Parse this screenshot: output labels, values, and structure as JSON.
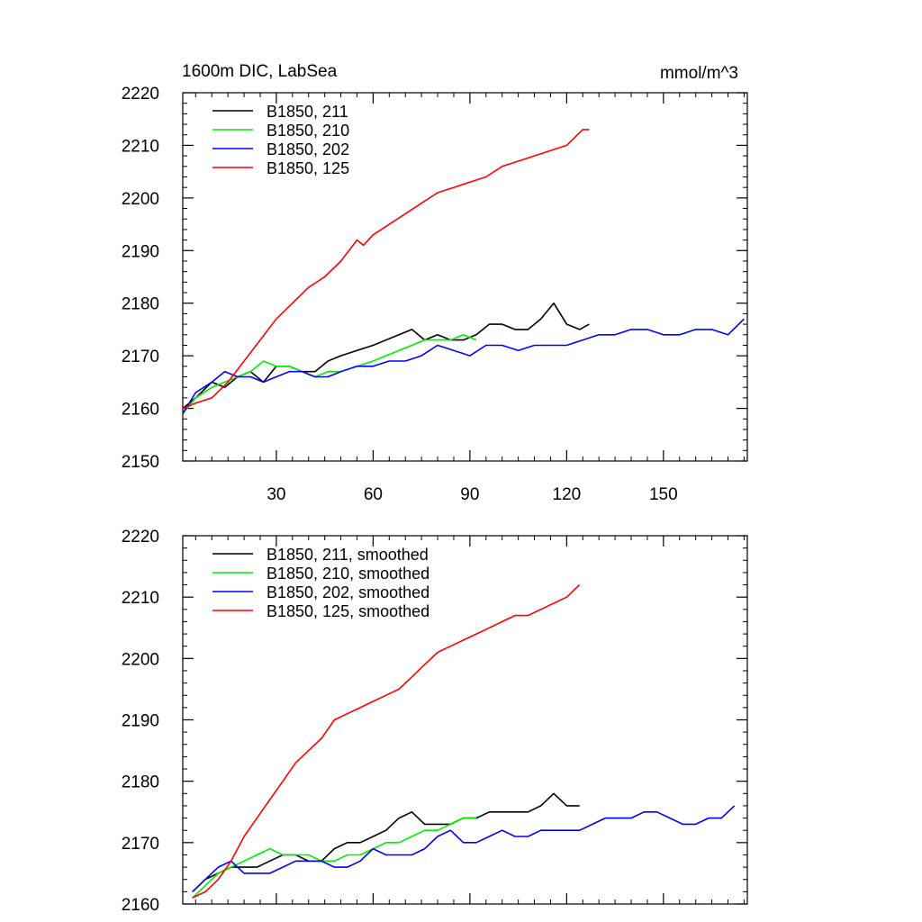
{
  "panel_title": "1600m DIC, LabSea",
  "units": "mmol/m^3",
  "chart_data": [
    {
      "type": "line",
      "title": "1600m DIC, LabSea",
      "units": "mmol/m^3",
      "xlim": [
        1,
        176
      ],
      "ylim": [
        2150,
        2220
      ],
      "xticks": [
        30,
        60,
        90,
        120,
        150
      ],
      "yticks": [
        2150,
        2160,
        2170,
        2180,
        2190,
        2200,
        2210,
        2220
      ],
      "legend_position": "top-left",
      "series": [
        {
          "name": "B1850, 211",
          "color": "#000000",
          "x": [
            1,
            5,
            10,
            14,
            18,
            22,
            26,
            30,
            34,
            38,
            42,
            46,
            50,
            55,
            60,
            64,
            68,
            72,
            76,
            80,
            84,
            88,
            92,
            96,
            100,
            104,
            108,
            112,
            116,
            120,
            124,
            127
          ],
          "y": [
            2160,
            2162,
            2165,
            2164,
            2166,
            2167,
            2165,
            2168,
            2168,
            2167,
            2167,
            2169,
            2170,
            2171,
            2172,
            2173,
            2174,
            2175,
            2173,
            2174,
            2173,
            2173,
            2174,
            2176,
            2176,
            2175,
            2175,
            2177,
            2180,
            2176,
            2175,
            2176
          ]
        },
        {
          "name": "B1850, 210",
          "color": "#00ee00",
          "x": [
            1,
            5,
            10,
            14,
            18,
            22,
            26,
            30,
            34,
            38,
            42,
            46,
            50,
            55,
            60,
            64,
            68,
            72,
            76,
            80,
            84,
            88,
            92
          ],
          "y": [
            2159,
            2162,
            2164,
            2165,
            2166,
            2167,
            2169,
            2168,
            2168,
            2167,
            2166,
            2167,
            2167,
            2168,
            2169,
            2170,
            2171,
            2172,
            2173,
            2173,
            2173,
            2174,
            2173
          ]
        },
        {
          "name": "B1850, 202",
          "color": "#0000ff",
          "x": [
            1,
            5,
            10,
            14,
            18,
            22,
            26,
            30,
            34,
            38,
            42,
            46,
            50,
            55,
            60,
            65,
            70,
            75,
            80,
            85,
            90,
            95,
            100,
            105,
            110,
            115,
            120,
            125,
            130,
            135,
            140,
            145,
            150,
            155,
            160,
            165,
            170,
            175
          ],
          "y": [
            2159,
            2163,
            2165,
            2167,
            2166,
            2166,
            2165,
            2166,
            2167,
            2167,
            2166,
            2166,
            2167,
            2168,
            2168,
            2169,
            2169,
            2170,
            2172,
            2171,
            2170,
            2172,
            2172,
            2171,
            2172,
            2172,
            2172,
            2173,
            2174,
            2174,
            2175,
            2175,
            2174,
            2174,
            2175,
            2175,
            2174,
            2177
          ]
        },
        {
          "name": "B1850, 125",
          "color": "#ff0000",
          "x": [
            1,
            5,
            10,
            15,
            20,
            25,
            30,
            35,
            40,
            45,
            50,
            55,
            57,
            60,
            65,
            70,
            75,
            80,
            85,
            90,
            95,
            100,
            105,
            110,
            115,
            120,
            125,
            127
          ],
          "y": [
            2160,
            2161,
            2162,
            2165,
            2169,
            2173,
            2177,
            2180,
            2183,
            2185,
            2188,
            2192,
            2191,
            2193,
            2195,
            2197,
            2199,
            2201,
            2202,
            2203,
            2204,
            2206,
            2207,
            2208,
            2209,
            2210,
            2213,
            2213
          ]
        }
      ]
    },
    {
      "type": "line",
      "xlim": [
        1,
        176
      ],
      "ylim": [
        2160,
        2220
      ],
      "xticks": [
        30,
        60,
        90,
        120,
        150
      ],
      "yticks": [
        2160,
        2170,
        2180,
        2190,
        2200,
        2210,
        2220
      ],
      "legend_position": "top-left",
      "series": [
        {
          "name": "B1850, 211, smoothed",
          "color": "#000000",
          "x": [
            4,
            8,
            12,
            16,
            20,
            24,
            28,
            32,
            36,
            40,
            44,
            48,
            52,
            56,
            60,
            64,
            68,
            72,
            76,
            80,
            84,
            88,
            92,
            96,
            100,
            104,
            108,
            112,
            116,
            120,
            124
          ],
          "y": [
            2162,
            2164,
            2165,
            2166,
            2166,
            2166,
            2167,
            2168,
            2168,
            2167,
            2167,
            2169,
            2170,
            2170,
            2171,
            2172,
            2174,
            2175,
            2173,
            2173,
            2173,
            2174,
            2174,
            2175,
            2175,
            2175,
            2175,
            2176,
            2178,
            2176,
            2176
          ]
        },
        {
          "name": "B1850, 210, smoothed",
          "color": "#00ee00",
          "x": [
            4,
            8,
            12,
            16,
            20,
            24,
            28,
            32,
            36,
            40,
            44,
            48,
            52,
            56,
            60,
            64,
            68,
            72,
            76,
            80,
            84,
            88,
            92
          ],
          "y": [
            2161,
            2163,
            2165,
            2166,
            2167,
            2168,
            2169,
            2168,
            2168,
            2168,
            2167,
            2167,
            2168,
            2168,
            2169,
            2170,
            2170,
            2171,
            2172,
            2172,
            2173,
            2174,
            2174
          ]
        },
        {
          "name": "B1850, 202, smoothed",
          "color": "#0000ff",
          "x": [
            4,
            8,
            12,
            16,
            20,
            24,
            28,
            32,
            36,
            40,
            44,
            48,
            52,
            56,
            60,
            64,
            68,
            72,
            76,
            80,
            84,
            88,
            92,
            96,
            100,
            104,
            108,
            112,
            116,
            120,
            124,
            128,
            132,
            136,
            140,
            144,
            148,
            152,
            156,
            160,
            164,
            168,
            172
          ],
          "y": [
            2162,
            2164,
            2166,
            2167,
            2165,
            2165,
            2165,
            2166,
            2167,
            2167,
            2167,
            2166,
            2166,
            2167,
            2169,
            2168,
            2168,
            2168,
            2169,
            2171,
            2172,
            2170,
            2170,
            2171,
            2172,
            2171,
            2171,
            2172,
            2172,
            2172,
            2172,
            2173,
            2174,
            2174,
            2174,
            2175,
            2175,
            2174,
            2173,
            2173,
            2174,
            2174,
            2176
          ]
        },
        {
          "name": "B1850, 125, smoothed",
          "color": "#ff0000",
          "x": [
            4,
            8,
            12,
            16,
            20,
            24,
            28,
            32,
            36,
            40,
            44,
            48,
            52,
            56,
            60,
            64,
            68,
            72,
            76,
            80,
            84,
            88,
            92,
            96,
            100,
            104,
            108,
            112,
            116,
            120,
            124
          ],
          "y": [
            2161,
            2162,
            2164,
            2167,
            2171,
            2174,
            2177,
            2180,
            2183,
            2185,
            2187,
            2190,
            2191,
            2192,
            2193,
            2194,
            2195,
            2197,
            2199,
            2201,
            2202,
            2203,
            2204,
            2205,
            2206,
            2207,
            2207,
            2208,
            2209,
            2210,
            2212
          ]
        }
      ]
    }
  ]
}
